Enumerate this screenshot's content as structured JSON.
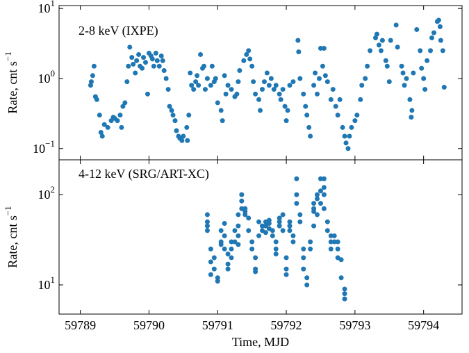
{
  "chart_data": [
    {
      "type": "scatter",
      "label": "2-8 keV (IXPE)",
      "ylabel": "Rate, cnt s",
      "ylabel_exponent": "−1",
      "color": "#1f77b4",
      "log_y": true,
      "xlim": [
        59788.69,
        59794.56
      ],
      "ylim": [
        0.069,
        11
      ],
      "yticks": [
        {
          "value": 0.1,
          "label": "10",
          "exponent": "−1"
        },
        {
          "value": 1,
          "label": "10",
          "exponent": "0"
        },
        {
          "value": 10,
          "label": "10",
          "exponent": "1"
        }
      ],
      "x": [
        59789.15,
        59789.16,
        59789.18,
        59789.2,
        59789.22,
        59789.24,
        59789.28,
        59789.3,
        59789.32,
        59789.35,
        59789.4,
        59789.45,
        59789.48,
        59789.5,
        59789.54,
        59789.58,
        59789.6,
        59789.62,
        59789.65,
        59789.68,
        59789.7,
        59789.72,
        59789.75,
        59789.77,
        59789.8,
        59789.82,
        59789.85,
        59789.87,
        59789.9,
        59789.92,
        59789.95,
        59789.98,
        59790.0,
        59790.03,
        59790.05,
        59790.07,
        59790.1,
        59790.12,
        59790.15,
        59790.18,
        59790.2,
        59790.22,
        59790.25,
        59790.28,
        59790.3,
        59790.33,
        59790.35,
        59790.38,
        59790.4,
        59790.43,
        59790.45,
        59790.48,
        59790.5,
        59790.55,
        59790.56,
        59790.58,
        59790.6,
        59790.62,
        59790.65,
        59790.68,
        59790.7,
        59790.72,
        59790.75,
        59790.78,
        59790.8,
        59790.82,
        59790.85,
        59790.9,
        59790.92,
        59790.95,
        59790.97,
        59791.0,
        59791.05,
        59791.07,
        59791.1,
        59791.12,
        59791.15,
        59791.2,
        59791.25,
        59791.28,
        59791.3,
        59791.32,
        59791.38,
        59791.42,
        59791.45,
        59791.47,
        59791.5,
        59791.52,
        59791.55,
        59791.6,
        59791.62,
        59791.65,
        59791.68,
        59791.72,
        59791.75,
        59791.78,
        59791.82,
        59791.85,
        59791.9,
        59791.92,
        59791.95,
        59791.98,
        59792.0,
        59792.02,
        59792.05,
        59792.1,
        59792.17,
        59792.18,
        59792.2,
        59792.25,
        59792.28,
        59792.3,
        59792.33,
        59792.35,
        59792.4,
        59792.42,
        59792.45,
        59792.48,
        59792.5,
        59792.53,
        59792.55,
        59792.57,
        59792.6,
        59792.65,
        59792.68,
        59792.72,
        59792.75,
        59792.78,
        59792.82,
        59792.85,
        59792.87,
        59792.9,
        59792.92,
        59792.95,
        59793.0,
        59793.03,
        59793.08,
        59793.1,
        59793.15,
        59793.18,
        59793.22,
        59793.3,
        59793.32,
        59793.35,
        59793.38,
        59793.4,
        59793.45,
        59793.47,
        59793.5,
        59793.52,
        59793.6,
        59793.62,
        59793.68,
        59793.7,
        59793.72,
        59793.75,
        59793.8,
        59793.82,
        59793.83,
        59793.85,
        59793.9,
        59793.95,
        59793.97,
        59794.0,
        59794.02,
        59794.05,
        59794.1,
        59794.12,
        59794.15,
        59794.2,
        59794.22,
        59794.24,
        59794.25,
        59794.28,
        59794.3
      ],
      "values": [
        0.8,
        0.9,
        1.1,
        1.5,
        0.55,
        0.5,
        0.3,
        0.17,
        0.15,
        0.22,
        0.2,
        0.25,
        0.28,
        0.27,
        0.25,
        0.3,
        0.2,
        0.4,
        0.45,
        0.9,
        1.5,
        2.8,
        2.0,
        1.6,
        1.2,
        1.8,
        2.2,
        1.5,
        1.4,
        2.0,
        1.7,
        0.6,
        2.3,
        2.1,
        1.9,
        1.5,
        2.3,
        1.8,
        1.5,
        2.1,
        1.8,
        1.3,
        1.0,
        0.7,
        0.4,
        0.35,
        0.3,
        0.25,
        0.18,
        0.15,
        0.14,
        0.13,
        0.15,
        0.2,
        0.13,
        0.3,
        1.2,
        0.8,
        0.7,
        0.9,
        1.1,
        0.8,
        2.2,
        1.4,
        1.5,
        0.7,
        1.0,
        0.8,
        1.5,
        0.9,
        1.0,
        0.45,
        0.35,
        0.25,
        1.1,
        0.6,
        0.8,
        0.7,
        0.55,
        0.6,
        0.9,
        1.3,
        1.8,
        2.2,
        2.5,
        1.9,
        1.5,
        0.9,
        0.6,
        0.5,
        0.35,
        0.7,
        0.9,
        1.2,
        0.8,
        1.0,
        0.7,
        0.8,
        0.6,
        0.5,
        0.7,
        0.4,
        0.25,
        0.35,
        0.8,
        0.9,
        3.5,
        2.4,
        1.0,
        0.6,
        0.4,
        0.3,
        0.2,
        0.15,
        0.8,
        1.2,
        0.6,
        1.0,
        2.7,
        1.5,
        2.7,
        1.1,
        0.9,
        0.5,
        0.7,
        0.4,
        0.3,
        0.5,
        0.2,
        0.15,
        0.12,
        0.1,
        0.15,
        0.2,
        0.25,
        0.3,
        0.5,
        0.8,
        1.0,
        1.5,
        2.5,
        3.8,
        4.3,
        3.0,
        2.5,
        3.5,
        1.8,
        1.5,
        0.9,
        3.5,
        5.8,
        2.8,
        1.5,
        1.2,
        0.8,
        1.0,
        0.5,
        0.28,
        0.35,
        1.2,
        5.0,
        2.5,
        1.4,
        1.0,
        0.7,
        1.8,
        2.5,
        3.8,
        4.5,
        6.5,
        6.8,
        5.5,
        3.5,
        2.5,
        0.75
      ]
    },
    {
      "type": "scatter",
      "label": "4-12 keV (SRG/ART-XC)",
      "ylabel": "Rate, cnt s",
      "ylabel_exponent": "−1",
      "xlabel": "Time, MJD",
      "color": "#1f77b4",
      "log_y": true,
      "xlim": [
        59788.69,
        59794.56
      ],
      "ylim": [
        4.75,
        243
      ],
      "xticks": [
        59789,
        59790,
        59791,
        59792,
        59793,
        59794
      ],
      "yticks": [
        {
          "value": 10,
          "label": "10",
          "exponent": "1"
        },
        {
          "value": 100,
          "label": "10",
          "exponent": "2"
        }
      ],
      "x": [
        59790.85,
        59790.85,
        59790.85,
        59790.85,
        59790.9,
        59790.9,
        59790.9,
        59790.95,
        59790.95,
        59791.0,
        59791.0,
        59791.05,
        59791.05,
        59791.05,
        59791.1,
        59791.1,
        59791.1,
        59791.15,
        59791.15,
        59791.15,
        59791.2,
        59791.2,
        59791.2,
        59791.25,
        59791.25,
        59791.3,
        59791.3,
        59791.3,
        59791.3,
        59791.35,
        59791.35,
        59791.35,
        59791.4,
        59791.4,
        59791.4,
        59791.45,
        59791.45,
        59791.5,
        59791.5,
        59791.55,
        59791.55,
        59791.55,
        59791.6,
        59791.6,
        59791.65,
        59791.65,
        59791.7,
        59791.7,
        59791.7,
        59791.75,
        59791.75,
        59791.75,
        59791.8,
        59791.8,
        59791.85,
        59791.85,
        59791.85,
        59791.9,
        59791.9,
        59791.9,
        59791.95,
        59791.95,
        59792.0,
        59792.0,
        59792.0,
        59792.05,
        59792.05,
        59792.05,
        59792.1,
        59792.1,
        59792.15,
        59792.15,
        59792.15,
        59792.2,
        59792.2,
        59792.25,
        59792.25,
        59792.25,
        59792.3,
        59792.3,
        59792.35,
        59792.35,
        59792.4,
        59792.4,
        59792.4,
        59792.4,
        59792.45,
        59792.45,
        59792.45,
        59792.5,
        59792.5,
        59792.5,
        59792.55,
        59792.55,
        59792.55,
        59792.55,
        59792.6,
        59792.6,
        59792.65,
        59792.65,
        59792.65,
        59792.7,
        59792.7,
        59792.75,
        59792.75,
        59792.75,
        59792.8,
        59792.8,
        59792.85,
        59792.85,
        59792.85
      ],
      "values": [
        60,
        50,
        40,
        45,
        25,
        18,
        13,
        20,
        15,
        12,
        11,
        30,
        40,
        28,
        48,
        35,
        25,
        17,
        22,
        15,
        30,
        25,
        20,
        30,
        40,
        60,
        45,
        35,
        28,
        100,
        85,
        70,
        70,
        65,
        60,
        55,
        40,
        30,
        25,
        20,
        15,
        14,
        50,
        35,
        45,
        40,
        50,
        45,
        38,
        48,
        52,
        42,
        40,
        35,
        30,
        25,
        22,
        45,
        50,
        55,
        60,
        40,
        20,
        15,
        13,
        40,
        50,
        45,
        35,
        30,
        80,
        150,
        100,
        60,
        50,
        25,
        20,
        15,
        12,
        10,
        25,
        30,
        45,
        70,
        80,
        65,
        90,
        100,
        60,
        150,
        110,
        80,
        150,
        120,
        100,
        70,
        50,
        40,
        35,
        30,
        25,
        35,
        30,
        30,
        25,
        20,
        19,
        12,
        9,
        8,
        7
      ]
    }
  ]
}
